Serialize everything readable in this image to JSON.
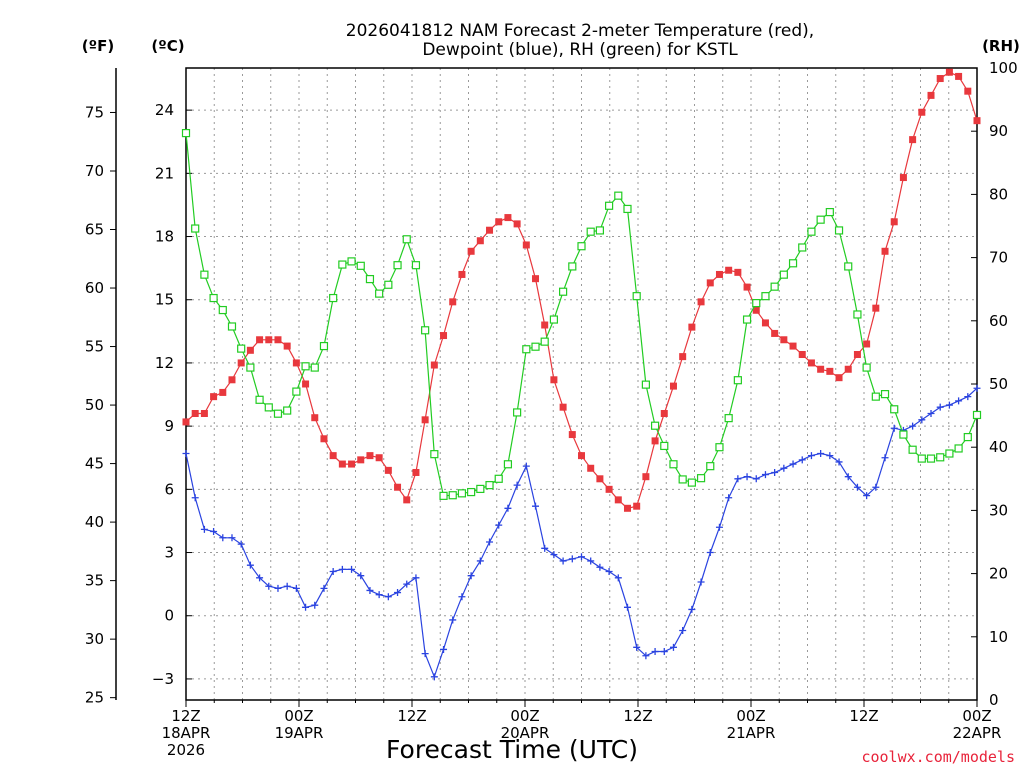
{
  "chart_data": {
    "type": "line",
    "title": "2026041812 NAM Forecast 2-meter Temperature (red),",
    "subtitle": "Dewpoint (blue), RH (green) for KSTL",
    "xlabel": "Forecast Time (UTC)",
    "units": {
      "fahrenheit": "(ºF)",
      "celsius": "(ºC)",
      "rh": "(RH)"
    },
    "credit": "coolwx.com/models",
    "x_range_hours": [
      0,
      84
    ],
    "x_ticks": [
      {
        "hour": 0,
        "lines": [
          "12Z",
          "18APR",
          "2026"
        ]
      },
      {
        "hour": 12,
        "lines": [
          "00Z",
          "19APR"
        ]
      },
      {
        "hour": 24,
        "lines": [
          "12Z"
        ]
      },
      {
        "hour": 36,
        "lines": [
          "00Z",
          "20APR"
        ]
      },
      {
        "hour": 48,
        "lines": [
          "12Z"
        ]
      },
      {
        "hour": 60,
        "lines": [
          "00Z",
          "21APR"
        ]
      },
      {
        "hour": 72,
        "lines": [
          "12Z"
        ]
      },
      {
        "hour": 84,
        "lines": [
          "00Z",
          "22APR"
        ]
      }
    ],
    "y_celsius": {
      "min": -4,
      "max": 26,
      "ticks": [
        "-3",
        "0",
        "3",
        "6",
        "9",
        "12",
        "15",
        "18",
        "21",
        "24"
      ]
    },
    "y_fahrenheit": {
      "ticks": [
        "25",
        "30",
        "35",
        "40",
        "45",
        "50",
        "55",
        "60",
        "65",
        "70",
        "75"
      ]
    },
    "y_rh": {
      "min": 0,
      "max": 100,
      "ticks": [
        "0",
        "10",
        "20",
        "30",
        "40",
        "50",
        "60",
        "70",
        "80",
        "90",
        "100"
      ]
    },
    "series": [
      {
        "name": "Temperature",
        "unit": "C",
        "color": "#e8383d",
        "marker": "filled-square",
        "values": [
          9.2,
          9.6,
          9.6,
          10.4,
          10.6,
          11.2,
          12.0,
          12.6,
          13.1,
          13.1,
          13.1,
          12.8,
          12.0,
          11.0,
          9.4,
          8.4,
          7.6,
          7.2,
          7.2,
          7.4,
          7.6,
          7.5,
          6.9,
          6.1,
          5.5,
          6.8,
          9.3,
          11.9,
          13.3,
          14.9,
          16.2,
          17.3,
          17.8,
          18.3,
          18.7,
          18.9,
          18.6,
          17.6,
          16.0,
          13.8,
          11.2,
          9.9,
          8.6,
          7.6,
          7.0,
          6.5,
          6.0,
          5.5,
          5.1,
          5.2,
          6.6,
          8.3,
          9.6,
          10.9,
          12.3,
          13.7,
          14.9,
          15.8,
          16.2,
          16.4,
          16.3,
          15.6,
          14.5,
          13.9,
          13.4,
          13.1,
          12.8,
          12.4,
          12.0,
          11.7,
          11.6,
          11.3,
          11.7,
          12.4,
          12.9,
          14.6,
          17.3,
          18.7,
          20.8,
          22.6,
          23.9,
          24.7,
          25.5,
          25.8,
          25.6,
          24.9,
          23.5
        ]
      },
      {
        "name": "Dewpoint",
        "unit": "C",
        "color": "#2a43e0",
        "marker": "plus",
        "values": [
          7.7,
          5.6,
          4.1,
          4.0,
          3.7,
          3.7,
          3.4,
          2.4,
          1.8,
          1.4,
          1.3,
          1.4,
          1.3,
          0.4,
          0.5,
          1.3,
          2.1,
          2.2,
          2.2,
          1.9,
          1.2,
          1.0,
          0.9,
          1.1,
          1.5,
          1.8,
          -1.8,
          -2.9,
          -1.6,
          -0.2,
          0.9,
          1.9,
          2.6,
          3.5,
          4.3,
          5.1,
          6.2,
          7.1,
          5.2,
          3.2,
          2.9,
          2.6,
          2.7,
          2.8,
          2.6,
          2.3,
          2.1,
          1.8,
          0.4,
          -1.5,
          -1.9,
          -1.7,
          -1.7,
          -1.5,
          -0.7,
          0.3,
          1.6,
          3.0,
          4.2,
          5.6,
          6.5,
          6.6,
          6.5,
          6.7,
          6.8,
          7.0,
          7.2,
          7.4,
          7.6,
          7.7,
          7.6,
          7.3,
          6.6,
          6.1,
          5.7,
          6.1,
          7.5,
          8.9,
          8.8,
          9.0,
          9.3,
          9.6,
          9.9,
          10.0,
          10.2,
          10.4,
          10.8
        ]
      },
      {
        "name": "RH",
        "unit": "%",
        "color": "#22cc22",
        "marker": "open-square",
        "values": [
          89.7,
          74.6,
          67.3,
          63.6,
          61.7,
          59.1,
          55.6,
          52.6,
          47.5,
          46.3,
          45.3,
          45.8,
          48.8,
          52.8,
          52.6,
          56.0,
          63.6,
          68.9,
          69.4,
          68.7,
          66.6,
          64.3,
          65.7,
          68.8,
          72.9,
          68.8,
          58.5,
          38.9,
          32.3,
          32.4,
          32.7,
          32.9,
          33.4,
          34.0,
          35.0,
          37.3,
          45.5,
          55.5,
          55.9,
          56.7,
          60.2,
          64.6,
          68.6,
          71.8,
          74.1,
          74.3,
          78.2,
          79.8,
          77.7,
          63.9,
          49.9,
          43.4,
          40.2,
          37.3,
          34.9,
          34.4,
          35.1,
          37.0,
          40.0,
          44.6,
          50.6,
          60.2,
          62.8,
          63.9,
          65.4,
          67.3,
          69.1,
          71.6,
          74.1,
          76.0,
          77.2,
          74.3,
          68.6,
          61.0,
          52.6,
          48.0,
          48.4,
          46.0,
          42.0,
          39.6,
          38.2,
          38.2,
          38.4,
          39.0,
          39.8,
          41.6,
          45.1
        ]
      }
    ]
  }
}
